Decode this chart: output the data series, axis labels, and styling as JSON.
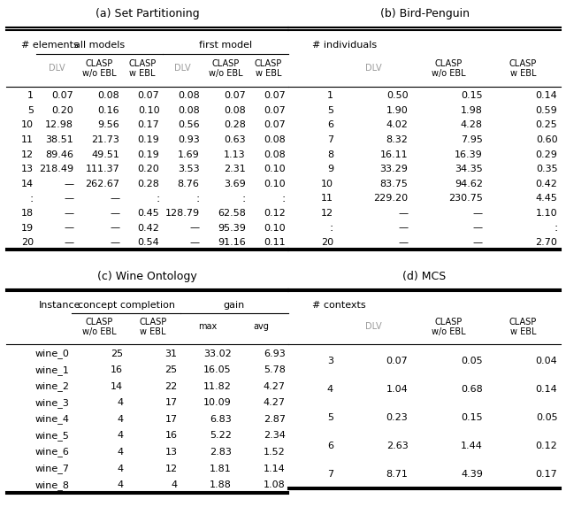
{
  "title_a": "(a) Set Partitioning",
  "title_b": "(b) Bird-Penguin",
  "title_c": "(c) Wine Ontology",
  "title_d": "(d) MCS",
  "table_a": {
    "col_groups": [
      {
        "label": "# elements",
        "span": 1,
        "col": 0
      },
      {
        "label": "all models",
        "span": 3,
        "col": 1
      },
      {
        "label": "first model",
        "span": 3,
        "col": 4
      }
    ],
    "subheaders": [
      "",
      "DLV",
      "CLASP\nw/o EBL",
      "CLASP\nw EBL",
      "DLV",
      "CLASP\nw/o EBL",
      "CLASP\nw EBL"
    ],
    "rows": [
      [
        "1",
        "0.07",
        "0.08",
        "0.07",
        "0.08",
        "0.07",
        "0.07"
      ],
      [
        "5",
        "0.20",
        "0.16",
        "0.10",
        "0.08",
        "0.08",
        "0.07"
      ],
      [
        "10",
        "12.98",
        "9.56",
        "0.17",
        "0.56",
        "0.28",
        "0.07"
      ],
      [
        "11",
        "38.51",
        "21.73",
        "0.19",
        "0.93",
        "0.63",
        "0.08"
      ],
      [
        "12",
        "89.46",
        "49.51",
        "0.19",
        "1.69",
        "1.13",
        "0.08"
      ],
      [
        "13",
        "218.49",
        "111.37",
        "0.20",
        "3.53",
        "2.31",
        "0.10"
      ],
      [
        "14",
        "—",
        "262.67",
        "0.28",
        "8.76",
        "3.69",
        "0.10"
      ],
      [
        ":",
        "—",
        "—",
        ":",
        ":",
        ":",
        ":"
      ],
      [
        "18",
        "—",
        "—",
        "0.45",
        "128.79",
        "62.58",
        "0.12"
      ],
      [
        "19",
        "—",
        "—",
        "0.42",
        "—",
        "95.39",
        "0.10"
      ],
      [
        "20",
        "—",
        "—",
        "0.54",
        "—",
        "91.16",
        "0.11"
      ]
    ]
  },
  "table_b": {
    "col_groups": [
      {
        "label": "# individuals",
        "span": 1,
        "col": 0
      },
      {
        "label": "",
        "span": 3,
        "col": 1
      }
    ],
    "subheaders": [
      "",
      "DLV",
      "CLASP\nw/o EBL",
      "CLASP\nw EBL"
    ],
    "rows": [
      [
        "1",
        "0.50",
        "0.15",
        "0.14"
      ],
      [
        "5",
        "1.90",
        "1.98",
        "0.59"
      ],
      [
        "6",
        "4.02",
        "4.28",
        "0.25"
      ],
      [
        "7",
        "8.32",
        "7.95",
        "0.60"
      ],
      [
        "8",
        "16.11",
        "16.39",
        "0.29"
      ],
      [
        "9",
        "33.29",
        "34.35",
        "0.35"
      ],
      [
        "10",
        "83.75",
        "94.62",
        "0.42"
      ],
      [
        "11",
        "229.20",
        "230.75",
        "4.45"
      ],
      [
        "12",
        "—",
        "—",
        "1.10"
      ],
      [
        ":",
        "—",
        "—",
        ":"
      ],
      [
        "20",
        "—",
        "—",
        "2.70"
      ]
    ]
  },
  "table_c": {
    "col_groups": [
      {
        "label": "Instance",
        "span": 1,
        "col": 0
      },
      {
        "label": "concept completion",
        "span": 2,
        "col": 1
      },
      {
        "label": "gain",
        "span": 2,
        "col": 3
      }
    ],
    "subheaders": [
      "",
      "CLASP\nw/o EBL",
      "CLASP\nw EBL",
      "max",
      "avg"
    ],
    "rows": [
      [
        "wine_0",
        "25",
        "31",
        "33.02",
        "6.93"
      ],
      [
        "wine_1",
        "16",
        "25",
        "16.05",
        "5.78"
      ],
      [
        "wine_2",
        "14",
        "22",
        "11.82",
        "4.27"
      ],
      [
        "wine_3",
        "4",
        "17",
        "10.09",
        "4.27"
      ],
      [
        "wine_4",
        "4",
        "17",
        "6.83",
        "2.87"
      ],
      [
        "wine_5",
        "4",
        "16",
        "5.22",
        "2.34"
      ],
      [
        "wine_6",
        "4",
        "13",
        "2.83",
        "1.52"
      ],
      [
        "wine_7",
        "4",
        "12",
        "1.81",
        "1.14"
      ],
      [
        "wine_8",
        "4",
        "4",
        "1.88",
        "1.08"
      ]
    ]
  },
  "table_d": {
    "col_groups": [
      {
        "label": "# contexts",
        "span": 1,
        "col": 0
      },
      {
        "label": "",
        "span": 3,
        "col": 1
      }
    ],
    "subheaders": [
      "",
      "DLV",
      "CLASP\nw/o EBL",
      "CLASP\nw EBL"
    ],
    "rows": [
      [
        "3",
        "0.07",
        "0.05",
        "0.04"
      ],
      [
        "4",
        "1.04",
        "0.68",
        "0.14"
      ],
      [
        "5",
        "0.23",
        "0.15",
        "0.05"
      ],
      [
        "6",
        "2.63",
        "1.44",
        "0.12"
      ],
      [
        "7",
        "8.71",
        "4.39",
        "0.17"
      ]
    ]
  }
}
